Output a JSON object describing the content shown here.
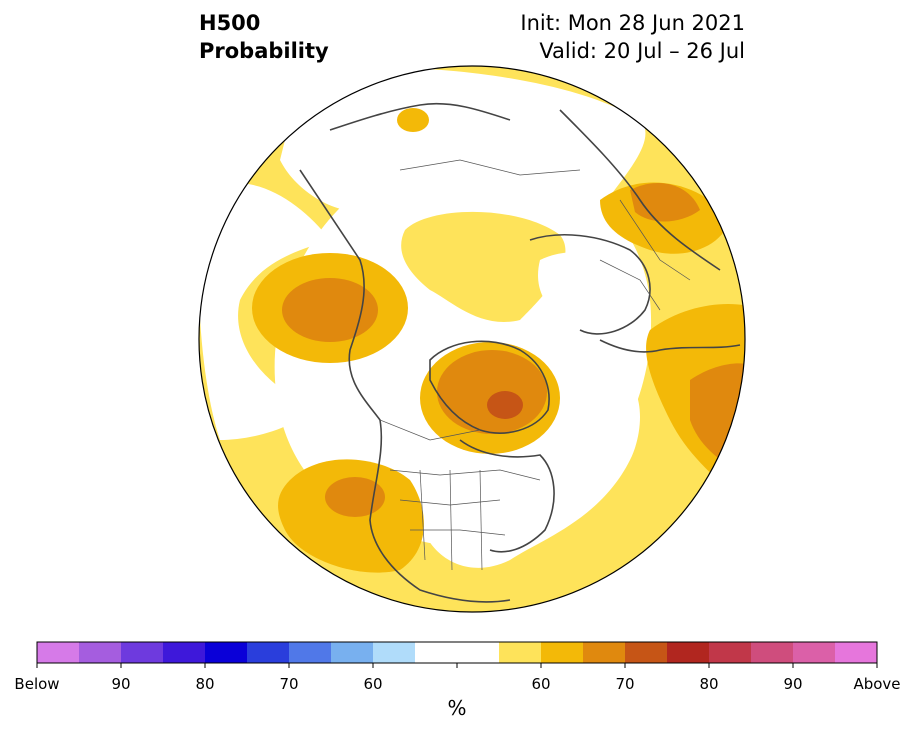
{
  "header": {
    "title_line1": "H500",
    "title_line2": "Probability",
    "init_label": "Init: Mon 28 Jun 2021",
    "valid_label": "Valid: 20 Jul – 26 Jul"
  },
  "colorbar": {
    "unit": "%",
    "colors": [
      "#d67ae8",
      "#a55ddf",
      "#6e3ade",
      "#3e18da",
      "#0a00d8",
      "#2a3edc",
      "#5078e8",
      "#78b0ef",
      "#b0dcfa",
      "#ffffff",
      "#ffffff",
      "#fee35a",
      "#f3b908",
      "#e0890e",
      "#c65516",
      "#b1261f",
      "#c13749",
      "#cf4d7d",
      "#db60a8",
      "#e676dc"
    ],
    "labels": [
      "Below",
      "90",
      "80",
      "70",
      "60",
      "60",
      "70",
      "80",
      "90",
      "Above"
    ]
  },
  "map": {
    "colors": {
      "ocean_white": "#ffffff",
      "p50": "#fee35a",
      "p60": "#f3b908",
      "p70": "#e0890e",
      "p80": "#c65516",
      "coast": "#444444"
    }
  }
}
